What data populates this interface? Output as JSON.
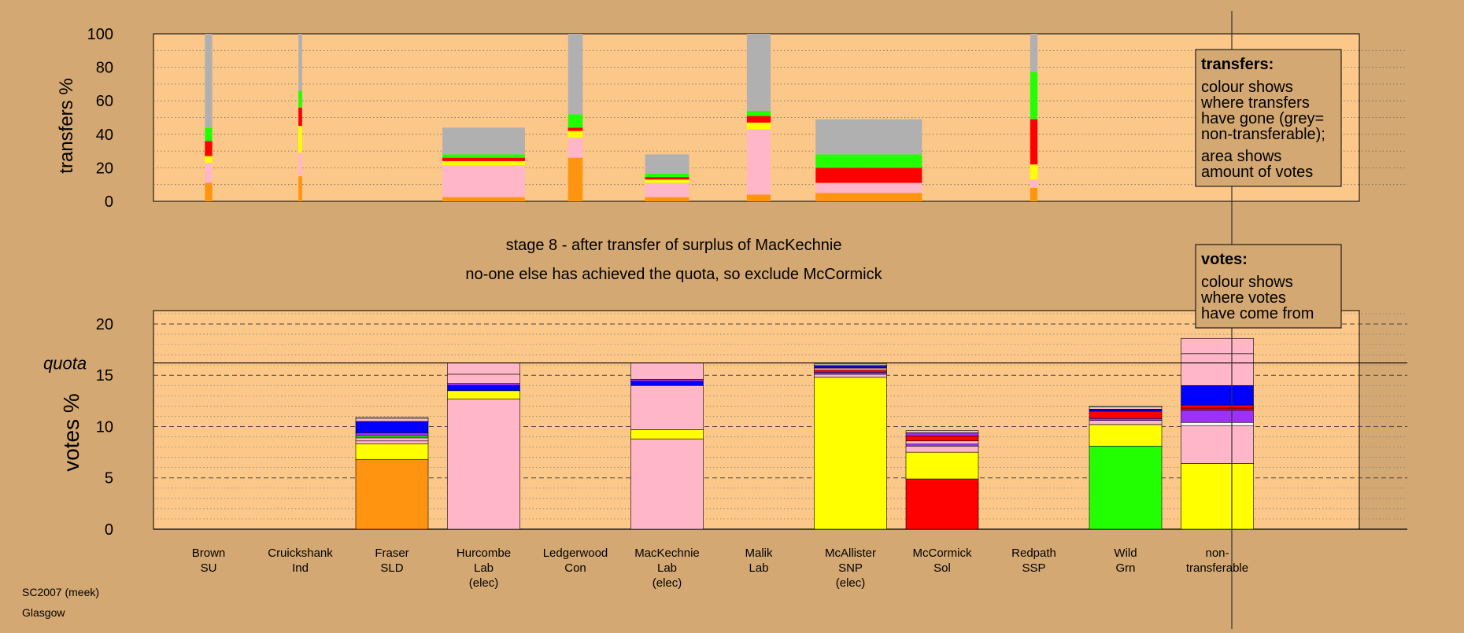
{
  "colors": {
    "page_bg": "#d4a872",
    "plot_bg": "#fcc88a",
    "SNP": "#ffff00",
    "Lab": "#ffb6c8",
    "SLD": "#ff9410",
    "Con": "#0000ff",
    "Grn": "#22ff00",
    "Sol": "#ff0000",
    "SSP": "#9b30ff",
    "SU": "#ffffff",
    "Ind": "#ffffff",
    "nontransferable": "#b0b0b0"
  },
  "transfers_panel": {
    "ylabel": "transfers %",
    "ticks": [
      0,
      20,
      40,
      60,
      80,
      100
    ],
    "legend": {
      "title": "transfers:",
      "para1": [
        "colour shows",
        "where transfers",
        "have gone (grey=",
        "non-transferable);"
      ],
      "para2": [
        "area shows",
        "amount of votes"
      ]
    }
  },
  "stage": {
    "line1": "stage 8 - after transfer of surplus of MacKechnie",
    "line2": "no-one else has achieved the quota, so exclude McCormick"
  },
  "votes_panel": {
    "ylabel": "votes %",
    "quota_label": "quota",
    "ticks": [
      0,
      5,
      10,
      15,
      20
    ],
    "legend": {
      "title": "votes:",
      "lines": [
        "colour shows",
        "where votes",
        "have come from"
      ]
    }
  },
  "categories": [
    {
      "name": "Brown",
      "party": "SU",
      "note": ""
    },
    {
      "name": "Cruickshank",
      "party": "Ind",
      "note": ""
    },
    {
      "name": "Fraser",
      "party": "SLD",
      "note": ""
    },
    {
      "name": "Hurcombe",
      "party": "Lab",
      "note": "(elec)"
    },
    {
      "name": "Ledgerwood",
      "party": "Con",
      "note": ""
    },
    {
      "name": "MacKechnie",
      "party": "Lab",
      "note": "(elec)"
    },
    {
      "name": "Malik",
      "party": "Lab",
      "note": ""
    },
    {
      "name": "McAllister",
      "party": "SNP",
      "note": "(elec)"
    },
    {
      "name": "McCormick",
      "party": "Sol",
      "note": ""
    },
    {
      "name": "Redpath",
      "party": "SSP",
      "note": ""
    },
    {
      "name": "Wild",
      "party": "Grn",
      "note": ""
    },
    {
      "name": "non-",
      "party": "transferable",
      "note": ""
    }
  ],
  "footer": {
    "line1": "SC2007 (meek)",
    "line2": "Glasgow"
  },
  "chart_data": [
    {
      "type": "bar",
      "title": "",
      "ylabel": "transfers %",
      "ylim": [
        0,
        100
      ],
      "grid": true,
      "legend_position": "top-right",
      "transfer_columns": [
        {
          "center_x": 0,
          "width_x": 0.08,
          "segments": [
            {
              "party": "SLD",
              "value": 11
            },
            {
              "party": "Lab",
              "value": 12
            },
            {
              "party": "SNP",
              "value": 4
            },
            {
              "party": "Sol",
              "value": 9
            },
            {
              "party": "Grn",
              "value": 8
            },
            {
              "party": "nontransferable",
              "value": 56
            }
          ]
        },
        {
          "center_x": 1,
          "width_x": 0.04,
          "segments": [
            {
              "party": "SLD",
              "value": 15
            },
            {
              "party": "Lab",
              "value": 14
            },
            {
              "party": "SNP",
              "value": 16
            },
            {
              "party": "Sol",
              "value": 11
            },
            {
              "party": "Grn",
              "value": 10
            },
            {
              "party": "nontransferable",
              "value": 34
            }
          ]
        },
        {
          "center_x": 3,
          "width_x": 0.9,
          "segments": [
            {
              "party": "SLD",
              "value": 2.5
            },
            {
              "party": "Lab",
              "value": 19
            },
            {
              "party": "SNP",
              "value": 2.5
            },
            {
              "party": "Sol",
              "value": 2
            },
            {
              "party": "Grn",
              "value": 2
            },
            {
              "party": "nontransferable",
              "value": 16
            }
          ]
        },
        {
          "center_x": 4,
          "width_x": 0.16,
          "segments": [
            {
              "party": "SLD",
              "value": 26
            },
            {
              "party": "Lab",
              "value": 12
            },
            {
              "party": "SNP",
              "value": 4
            },
            {
              "party": "Sol",
              "value": 2
            },
            {
              "party": "Grn",
              "value": 8
            },
            {
              "party": "nontransferable",
              "value": 48
            }
          ]
        },
        {
          "center_x": 5,
          "width_x": 0.48,
          "segments": [
            {
              "party": "SLD",
              "value": 2.5
            },
            {
              "party": "Lab",
              "value": 8.5
            },
            {
              "party": "SNP",
              "value": 2
            },
            {
              "party": "Sol",
              "value": 1.5
            },
            {
              "party": "Grn",
              "value": 2
            },
            {
              "party": "nontransferable",
              "value": 11.5
            }
          ]
        },
        {
          "center_x": 6,
          "width_x": 0.26,
          "segments": [
            {
              "party": "SLD",
              "value": 4
            },
            {
              "party": "Lab",
              "value": 39
            },
            {
              "party": "SNP",
              "value": 4
            },
            {
              "party": "Sol",
              "value": 4
            },
            {
              "party": "Grn",
              "value": 3
            },
            {
              "party": "nontransferable",
              "value": 46
            }
          ]
        },
        {
          "center_x": 7.2,
          "width_x": 1.16,
          "segments": [
            {
              "party": "SLD",
              "value": 5
            },
            {
              "party": "Lab",
              "value": 6
            },
            {
              "party": "Sol",
              "value": 9
            },
            {
              "party": "Grn",
              "value": 8
            },
            {
              "party": "nontransferable",
              "value": 21
            }
          ]
        },
        {
          "center_x": 9,
          "width_x": 0.08,
          "segments": [
            {
              "party": "SLD",
              "value": 8
            },
            {
              "party": "Lab",
              "value": 5
            },
            {
              "party": "SNP",
              "value": 9
            },
            {
              "party": "Sol",
              "value": 27
            },
            {
              "party": "Grn",
              "value": 28
            },
            {
              "party": "nontransferable",
              "value": 23
            }
          ]
        }
      ]
    },
    {
      "type": "bar",
      "title": "",
      "ylabel": "votes %",
      "ylim": [
        0,
        21.3
      ],
      "quota": 16.2,
      "grid": true,
      "legend_position": "top-right",
      "bars": [
        {
          "category": "Brown",
          "segments": []
        },
        {
          "category": "Cruickshank",
          "segments": []
        },
        {
          "category": "Fraser",
          "segments": [
            {
              "party": "SLD",
              "value": 6.8
            },
            {
              "party": "SNP",
              "value": 1.5
            },
            {
              "party": "Lab",
              "value": 0.3
            },
            {
              "party": "Lab",
              "value": 0.3
            },
            {
              "party": "Grn",
              "value": 0.2
            },
            {
              "party": "SSP",
              "value": 0.3
            },
            {
              "party": "Con",
              "value": 1.1
            },
            {
              "party": "Lab",
              "value": 0.3
            },
            {
              "party": "SU",
              "value": 0.1
            }
          ]
        },
        {
          "category": "Hurcombe",
          "segments": [
            {
              "party": "Lab",
              "value": 12.7
            },
            {
              "party": "SNP",
              "value": 0.8
            },
            {
              "party": "Con",
              "value": 0.5
            },
            {
              "party": "SSP",
              "value": 0.2
            },
            {
              "party": "Lab",
              "value": 0.9
            },
            {
              "party": "Lab",
              "value": 1.1
            }
          ]
        },
        {
          "category": "Ledgerwood",
          "segments": []
        },
        {
          "category": "MacKechnie",
          "segments": [
            {
              "party": "Lab",
              "value": 8.8
            },
            {
              "party": "SNP",
              "value": 0.9
            },
            {
              "party": "Lab",
              "value": 4.3
            },
            {
              "party": "Con",
              "value": 0.4
            },
            {
              "party": "SSP",
              "value": 0.2
            },
            {
              "party": "Lab",
              "value": 1.6
            }
          ]
        },
        {
          "category": "Malik",
          "segments": []
        },
        {
          "category": "McAllister",
          "segments": [
            {
              "party": "SNP",
              "value": 14.8
            },
            {
              "party": "Lab",
              "value": 0.3
            },
            {
              "party": "SSP",
              "value": 0.2
            },
            {
              "party": "Sol",
              "value": 0.2
            },
            {
              "party": "Lab",
              "value": 0.2
            },
            {
              "party": "Con",
              "value": 0.2
            },
            {
              "party": "Lab",
              "value": 0.1
            },
            {
              "party": "SU",
              "value": 0.1
            }
          ]
        },
        {
          "category": "McCormick",
          "segments": [
            {
              "party": "Sol",
              "value": 4.9
            },
            {
              "party": "SNP",
              "value": 2.6
            },
            {
              "party": "Lab",
              "value": 0.6
            },
            {
              "party": "SSP",
              "value": 0.2
            },
            {
              "party": "Lab",
              "value": 0.3
            },
            {
              "party": "Sol",
              "value": 0.5
            },
            {
              "party": "SSP",
              "value": 0.3
            },
            {
              "party": "Lab",
              "value": 0.2
            }
          ]
        },
        {
          "category": "Redpath",
          "segments": []
        },
        {
          "category": "Wild",
          "segments": [
            {
              "party": "Grn",
              "value": 8.1
            },
            {
              "party": "SNP",
              "value": 2.1
            },
            {
              "party": "Lab",
              "value": 0.4
            },
            {
              "party": "SSP",
              "value": 0.2
            },
            {
              "party": "Sol",
              "value": 0.7
            },
            {
              "party": "Con",
              "value": 0.2
            },
            {
              "party": "Lab",
              "value": 0.2
            },
            {
              "party": "SU",
              "value": 0.1
            }
          ]
        },
        {
          "category": "non-transferable",
          "segments": [
            {
              "party": "SNP",
              "value": 6.4
            },
            {
              "party": "Lab",
              "value": 3.7
            },
            {
              "party": "SU",
              "value": 0.3
            },
            {
              "party": "SSP",
              "value": 1.2
            },
            {
              "party": "Sol",
              "value": 0.2
            },
            {
              "party": "Sol",
              "value": 0.3
            },
            {
              "party": "Con",
              "value": 1.9
            },
            {
              "party": "Lab",
              "value": 3.1
            },
            {
              "party": "Lab",
              "value": 1.5
            }
          ]
        }
      ]
    }
  ]
}
